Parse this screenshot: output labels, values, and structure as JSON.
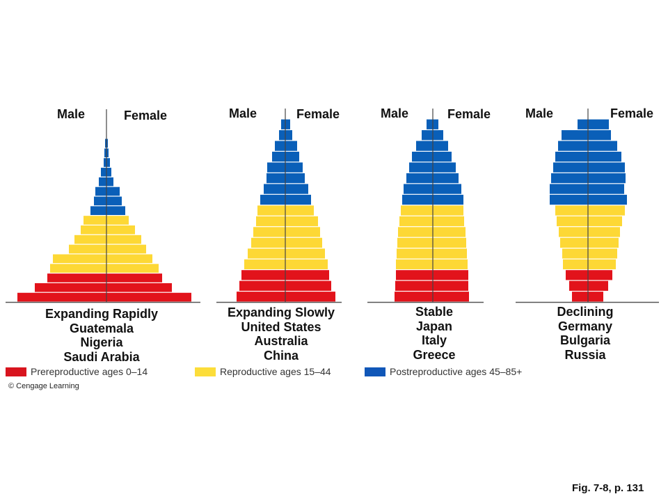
{
  "colors": {
    "prereproductive": "#e2131b",
    "reproductive": "#fdd835",
    "postreproductive": "#0a5fb8",
    "axis": "#333333",
    "legend_postreproductive": "#1057b8",
    "legend_reproductive": "#fcdd3a",
    "legend_prereproductive": "#d8141e"
  },
  "chart_data": [
    {
      "type": "population-pyramid",
      "title": "Expanding Rapidly",
      "examples": [
        "Guatemala",
        "Nigeria",
        "Saudi Arabia"
      ],
      "left_label": "Male",
      "right_label": "Female",
      "age_band_groups": [
        "pre",
        "pre",
        "pre",
        "rep",
        "rep",
        "rep",
        "rep",
        "rep",
        "rep",
        "post",
        "post",
        "post",
        "post",
        "post",
        "post",
        "post",
        "post"
      ],
      "male": [
        128,
        103,
        85,
        81,
        77,
        54,
        46,
        37,
        33,
        23,
        18,
        16,
        11,
        8,
        4,
        3,
        2
      ],
      "female": [
        122,
        94,
        80,
        75,
        66,
        57,
        50,
        41,
        32,
        27,
        22,
        19,
        10,
        7,
        5,
        3,
        2
      ]
    },
    {
      "type": "population-pyramid",
      "title": "Expanding Slowly",
      "examples": [
        "United States",
        "Australia",
        "China"
      ],
      "left_label": "Male",
      "right_label": "Female",
      "age_band_groups": [
        "pre",
        "pre",
        "pre",
        "rep",
        "rep",
        "rep",
        "rep",
        "rep",
        "rep",
        "post",
        "post",
        "post",
        "post",
        "post",
        "post",
        "post",
        "post"
      ],
      "male": [
        70,
        66,
        63,
        59,
        54,
        49,
        46,
        42,
        40,
        36,
        31,
        27,
        26,
        19,
        15,
        9,
        6
      ],
      "female": [
        72,
        66,
        63,
        61,
        57,
        53,
        50,
        47,
        41,
        37,
        33,
        28,
        25,
        20,
        17,
        10,
        7
      ]
    },
    {
      "type": "population-pyramid",
      "title": "Stable",
      "examples": [
        "Japan",
        "Italy",
        "Greece"
      ],
      "left_label": "Male",
      "right_label": "Female",
      "age_band_groups": [
        "pre",
        "pre",
        "pre",
        "rep",
        "rep",
        "rep",
        "rep",
        "rep",
        "rep",
        "post",
        "post",
        "post",
        "post",
        "post",
        "post",
        "post",
        "post"
      ],
      "male": [
        55,
        54,
        53,
        53,
        52,
        51,
        50,
        48,
        46,
        44,
        42,
        38,
        34,
        30,
        24,
        16,
        9
      ],
      "female": [
        52,
        51,
        51,
        50,
        49,
        48,
        47,
        45,
        44,
        44,
        41,
        37,
        33,
        27,
        22,
        15,
        8
      ]
    },
    {
      "type": "population-pyramid",
      "title": "Declining",
      "examples": [
        "Germany",
        "Bulgaria",
        "Russia"
      ],
      "left_label": "Male",
      "right_label": "Female",
      "age_band_groups": [
        "pre",
        "pre",
        "pre",
        "rep",
        "rep",
        "rep",
        "rep",
        "rep",
        "rep",
        "post",
        "post",
        "post",
        "post",
        "post",
        "post",
        "post",
        "post"
      ],
      "male": [
        23,
        27,
        32,
        36,
        37,
        40,
        42,
        45,
        47,
        55,
        55,
        53,
        50,
        47,
        43,
        38,
        15
      ],
      "female": [
        22,
        29,
        35,
        40,
        42,
        44,
        46,
        49,
        53,
        56,
        52,
        54,
        53,
        48,
        42,
        33,
        30
      ]
    }
  ],
  "legend": [
    {
      "label": "Prereproductive ages 0–14",
      "color_key": "legend_prereproductive"
    },
    {
      "label": "Reproductive ages 15–44",
      "color_key": "legend_reproductive"
    },
    {
      "label": "Postreproductive ages 45–85+",
      "color_key": "legend_postreproductive"
    }
  ],
  "credit": "© Cengage Learning",
  "figure_ref": "Fig. 7-8, p. 131"
}
